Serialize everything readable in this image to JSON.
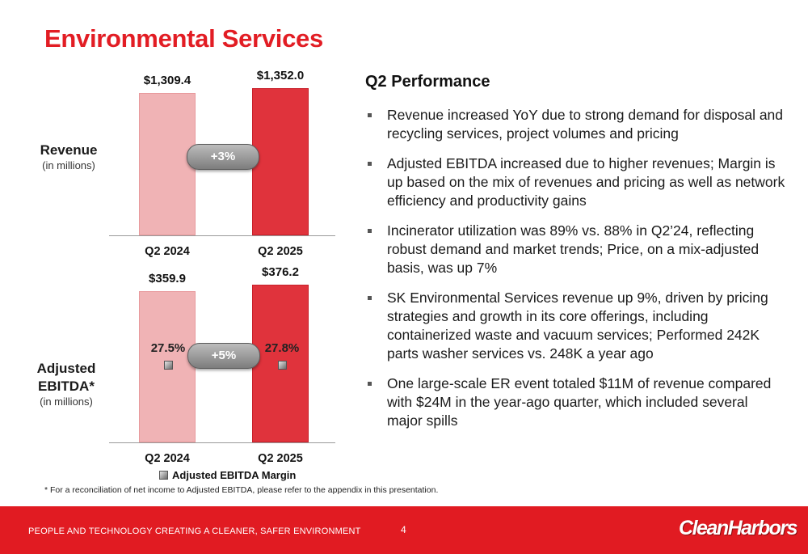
{
  "title": "Environmental Services",
  "revenue_label": {
    "main": "Revenue",
    "sub": "(in millions)"
  },
  "ebitda_label": {
    "main_line1": "Adjusted",
    "main_line2": "EBITDA*",
    "sub": "(in millions)"
  },
  "chart_data": [
    {
      "type": "bar",
      "title": "Revenue",
      "categories": [
        "Q2 2024",
        "Q2 2025"
      ],
      "values": [
        1309.4,
        1352.0
      ],
      "value_labels": [
        "$1,309.4",
        "$1,352.0"
      ],
      "change_label": "+3%",
      "colors": [
        "#f0b3b5",
        "#e0333c"
      ]
    },
    {
      "type": "bar",
      "title": "Adjusted EBITDA",
      "categories": [
        "Q2 2024",
        "Q2 2025"
      ],
      "values": [
        359.9,
        376.2
      ],
      "value_labels": [
        "$359.9",
        "$376.2"
      ],
      "change_label": "+5%",
      "margin_series": {
        "name": "Adjusted EBITDA Margin",
        "values": [
          27.5,
          27.8
        ],
        "labels": [
          "27.5%",
          "27.8%"
        ]
      },
      "colors": [
        "#f0b3b5",
        "#e0333c"
      ]
    }
  ],
  "legend_label": "Adjusted EBITDA Margin",
  "performance": {
    "heading": "Q2 Performance",
    "bullets": [
      "Revenue increased YoY due to strong demand for disposal and recycling services, project volumes and pricing",
      "Adjusted EBITDA increased due to higher revenues; Margin is up based on the mix of revenues and pricing as well as network efficiency and productivity gains",
      "Incinerator utilization was 89% vs. 88% in Q2’24, reflecting robust demand and market trends; Price, on a mix-adjusted basis, was up 7%",
      "SK Environmental Services revenue up 9%, driven by pricing strategies and growth in its core offerings, including containerized waste and vacuum services; Performed 242K parts washer services vs. 248K a year ago",
      "One large-scale ER event totaled $11M of revenue compared with $24M in the year-ago quarter, which included several major spills"
    ]
  },
  "footnote": "* For a reconciliation of net income to Adjusted EBITDA, please refer to the appendix in this presentation.",
  "footer": {
    "tagline": "PEOPLE AND TECHNOLOGY CREATING A CLEANER, SAFER ENVIRONMENT",
    "page": "4",
    "logo_text": "CleanHarbors"
  },
  "colors": {
    "accent": "#e21d24",
    "footer": "#e11b22"
  }
}
